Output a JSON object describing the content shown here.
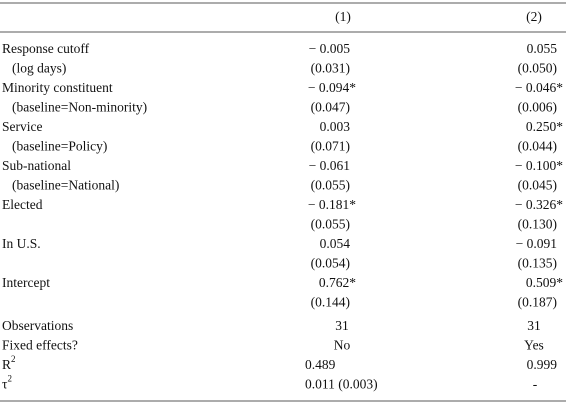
{
  "table": {
    "header": [
      "(1)",
      "(2)"
    ],
    "rows": [
      [
        "Response cutoff",
        "− 0.005",
        "0.055"
      ],
      [
        "(log days)",
        "(0.031)",
        "(0.050)"
      ],
      [
        "Minority constituent",
        "− 0.094*",
        "− 0.046*"
      ],
      [
        "(baseline=Non-minority)",
        "(0.047)",
        "(0.006)"
      ],
      [
        "Service",
        "0.003",
        "0.250*"
      ],
      [
        "(baseline=Policy)",
        "(0.071)",
        "(0.044)"
      ],
      [
        "Sub-national",
        "− 0.061",
        "− 0.100*"
      ],
      [
        "(baseline=National)",
        "(0.055)",
        "(0.045)"
      ],
      [
        "Elected",
        "− 0.181*",
        "− 0.326*"
      ],
      [
        null,
        "(0.055)",
        "(0.130)"
      ],
      [
        "In U.S.",
        "0.054",
        "− 0.091"
      ],
      [
        null,
        "(0.054)",
        "(0.135)"
      ],
      [
        "Intercept",
        "0.762*",
        "0.509*"
      ],
      [
        null,
        "(0.144)",
        "(0.187)"
      ]
    ],
    "stats": [
      {
        "label": {
          "text": "Observations"
        },
        "values": [
          "31",
          "31"
        ]
      },
      {
        "label": {
          "text": "Fixed effects?"
        },
        "values": [
          "No",
          "Yes"
        ]
      },
      {
        "label": {
          "text": "R",
          "sup": "2"
        },
        "values": [
          "0.489",
          "0.999"
        ]
      },
      {
        "label": {
          "text": "τ",
          "sup": "2"
        },
        "values": [
          "0.011 (0.003)",
          "-"
        ]
      }
    ]
  }
}
